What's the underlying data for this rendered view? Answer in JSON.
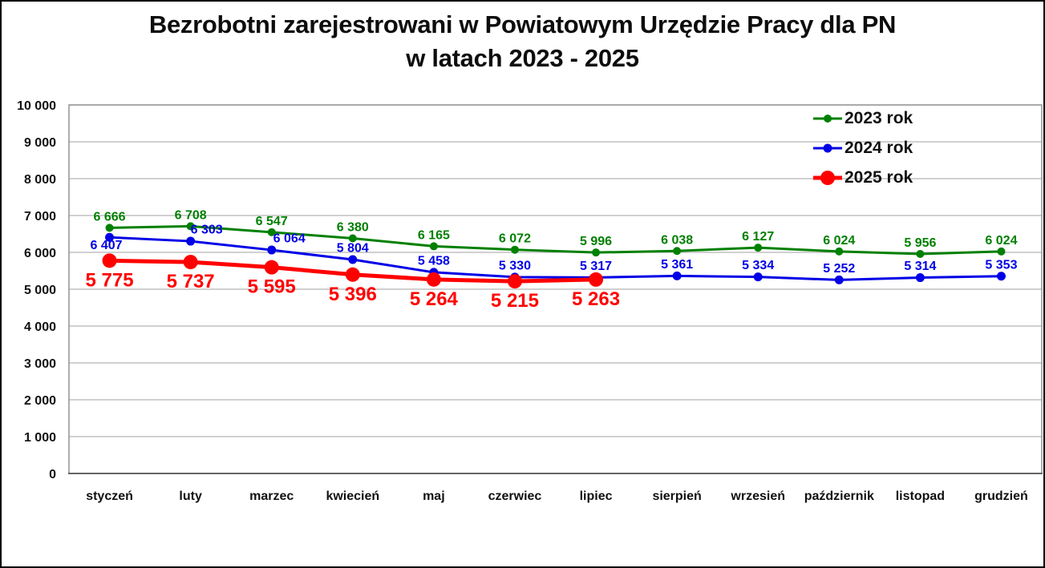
{
  "title_lines": [
    "Bezrobotni zarejestrowani w Powiatowym Urzędzie Pracy dla PN",
    "w latach 2023 - 2025"
  ],
  "chart_data": {
    "type": "line",
    "title": "Bezrobotni zarejestrowani w Powiatowym Urzędzie Pracy dla PN w latach 2023 - 2025",
    "categories": [
      "styczeń",
      "luty",
      "marzec",
      "kwiecień",
      "maj",
      "czerwiec",
      "lipiec",
      "sierpień",
      "wrzesień",
      "październik",
      "listopad",
      "grudzień"
    ],
    "series": [
      {
        "name": "2023 rok",
        "color": "#008000",
        "values": [
          6666,
          6708,
          6547,
          6380,
          6165,
          6072,
          5996,
          6038,
          6127,
          6024,
          5956,
          6024
        ],
        "marker_radius": 5,
        "line_width": 3,
        "label_position": "above",
        "label_font_size": 16
      },
      {
        "name": "2024 rok",
        "color": "#0000e6",
        "values": [
          6407,
          6303,
          6064,
          5804,
          5458,
          5330,
          5317,
          5361,
          5334,
          5252,
          5314,
          5353
        ],
        "marker_radius": 5.5,
        "line_width": 3,
        "label_position": "above",
        "label_font_size": 16,
        "label_overrides": {
          "0": {
            "dx": -4,
            "dy": 24
          },
          "1": {
            "dx": 20,
            "dy": 0
          },
          "2": {
            "dx": 22,
            "dy": 0
          }
        }
      },
      {
        "name": "2025 rok",
        "color": "#ff0000",
        "values": [
          5775,
          5737,
          5595,
          5396,
          5264,
          5215,
          5263
        ],
        "marker_radius": 9,
        "line_width": 5,
        "label_position": "below",
        "label_font_size": 24
      }
    ],
    "y_axis": {
      "min": 0,
      "max": 10000,
      "step": 1000,
      "tick_labels": [
        "0",
        "1 000",
        "2 000",
        "3 000",
        "4 000",
        "5 000",
        "6 000",
        "7 000",
        "8 000",
        "9 000",
        "10 000"
      ]
    },
    "legend": {
      "position": "top-right"
    },
    "grid": true,
    "number_format": "space-thousands"
  },
  "colors": {
    "grid": "#b3b3b3",
    "plot_border": "#999999",
    "axis": "#666666",
    "text": "#111111",
    "background": "#ffffff",
    "frame": "#000000"
  }
}
